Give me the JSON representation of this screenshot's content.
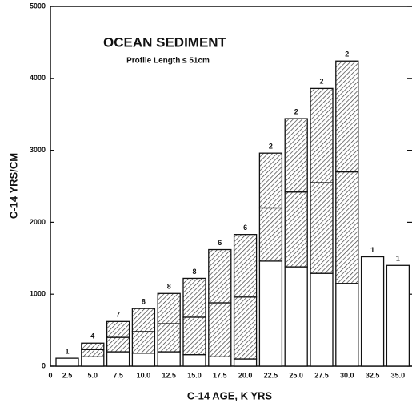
{
  "chart_data": {
    "type": "bar",
    "stacked": true,
    "title": "OCEAN SEDIMENT",
    "subtitle": "Profile Length ≤ 51cm",
    "y_label": "C-14 YRS/CM",
    "x_label": "C-14 AGE, K YRS",
    "x_origin_label": "0",
    "categories": [
      "2.5",
      "5.0",
      "7.5",
      "10.0",
      "12.5",
      "15.0",
      "17.5",
      "20.0",
      "22.5",
      "25.0",
      "27.5",
      "30.0",
      "32.5",
      "35.0"
    ],
    "series": [
      {
        "color": "#ffffff",
        "pattern": "none",
        "values": [
          110,
          130,
          200,
          180,
          200,
          160,
          130,
          100,
          1460,
          1380,
          1290,
          1150,
          1520,
          1400
        ]
      },
      {
        "color": "#ffffff",
        "pattern": "hatch",
        "values": [
          null,
          100,
          200,
          300,
          390,
          520,
          750,
          860,
          740,
          1040,
          1260,
          1550,
          null,
          null
        ]
      },
      {
        "color": "#ffffff",
        "pattern": "hatch",
        "values": [
          null,
          90,
          220,
          320,
          420,
          540,
          740,
          870,
          760,
          1020,
          1310,
          1540,
          null,
          null
        ]
      }
    ],
    "count_labels": [
      1,
      4,
      7,
      8,
      8,
      8,
      6,
      6,
      2,
      2,
      2,
      2,
      1,
      1
    ],
    "ylim": [
      0,
      5000
    ],
    "yticks": [
      0,
      1000,
      2000,
      3000,
      4000,
      5000
    ]
  }
}
